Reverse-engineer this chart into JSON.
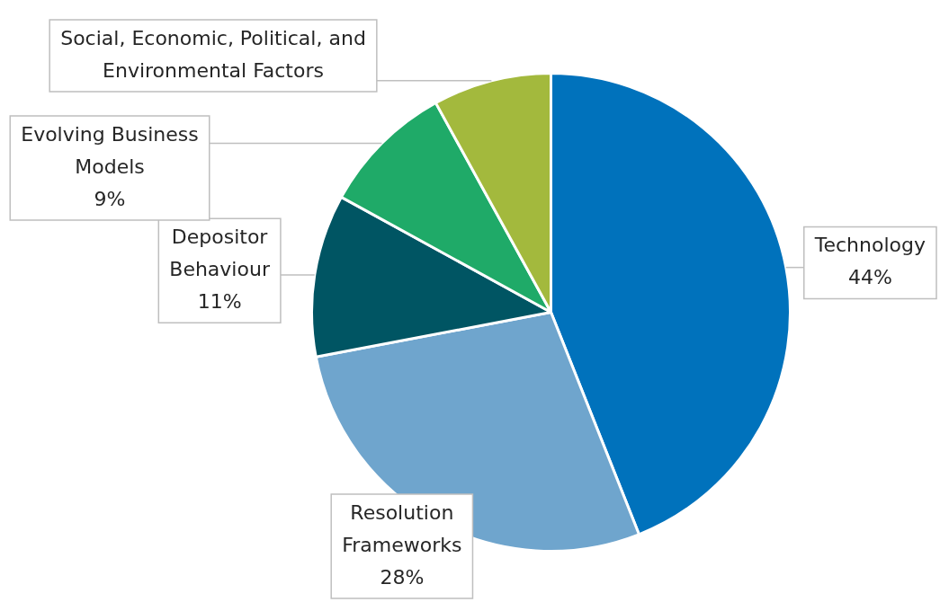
{
  "chart_data": {
    "type": "pie",
    "categories": [
      "Technology",
      "Resolution Frameworks",
      "Depositor Behaviour",
      "Evolving Business Models",
      "Social, Economic, Political, and Environmental Factors"
    ],
    "values": [
      44,
      28,
      11,
      9,
      8
    ],
    "colors": [
      "#0072bc",
      "#6fa5cd",
      "#005563",
      "#1faa68",
      "#a3b93d"
    ],
    "value_labels": [
      "44%",
      "28%",
      "11%",
      "9%",
      null
    ],
    "legend": false
  }
}
